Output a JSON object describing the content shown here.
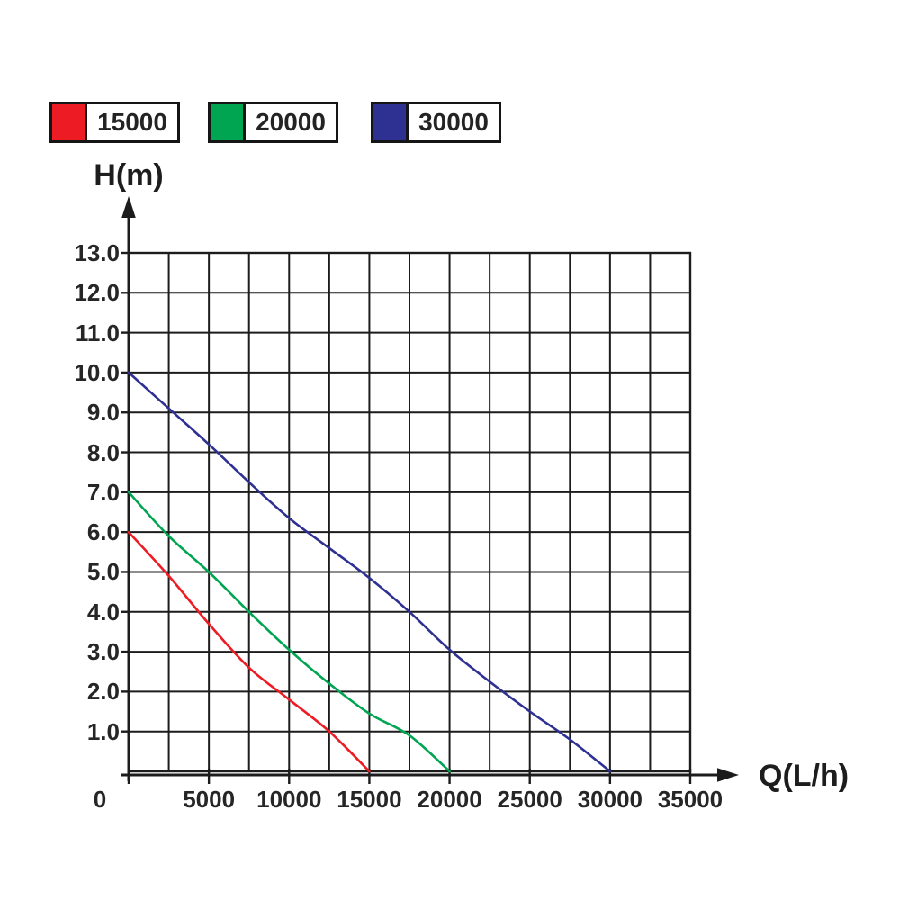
{
  "page": {
    "background": "#ffffff"
  },
  "legend": {
    "items": [
      {
        "label": "15000",
        "color": "#ED1C24"
      },
      {
        "label": "20000",
        "color": "#00A551"
      },
      {
        "label": "30000",
        "color": "#2E3192"
      }
    ]
  },
  "chart_data": {
    "type": "line",
    "title": "",
    "xlabel": "Q(L/h)",
    "ylabel": "H(m)",
    "xlim": [
      0,
      35000
    ],
    "ylim": [
      0,
      13
    ],
    "grid": {
      "on": true,
      "x_step": 2500,
      "y_step": 1.0
    },
    "x_tick_step": 5000,
    "y_tick_step": 1.0,
    "x_tick_labels": [
      "0",
      "5000",
      "10000",
      "15000",
      "20000",
      "25000",
      "30000",
      "35000"
    ],
    "y_tick_labels": [
      "1.0",
      "2.0",
      "3.0",
      "4.0",
      "5.0",
      "6.0",
      "7.0",
      "8.0",
      "9.0",
      "10.0",
      "11.0",
      "12.0",
      "13.0"
    ],
    "legend_position": "top-left",
    "axis_color": "#1c1c1c",
    "series": [
      {
        "name": "15000",
        "color": "#ED1C24",
        "x": [
          0,
          2500,
          5000,
          7500,
          10000,
          12500,
          15000
        ],
        "y": [
          6.0,
          4.9,
          3.7,
          2.6,
          1.8,
          1.0,
          0
        ]
      },
      {
        "name": "20000",
        "color": "#00A551",
        "x": [
          0,
          2500,
          5000,
          7500,
          10000,
          12500,
          15000,
          17500,
          20000
        ],
        "y": [
          7.0,
          5.9,
          5.0,
          4.0,
          3.05,
          2.2,
          1.45,
          0.9,
          0
        ]
      },
      {
        "name": "30000",
        "color": "#2E3192",
        "x": [
          0,
          2500,
          5000,
          7500,
          10000,
          12500,
          15000,
          17500,
          20000,
          22500,
          25000,
          27500,
          30000
        ],
        "y": [
          10.0,
          9.1,
          8.2,
          7.25,
          6.35,
          5.6,
          4.85,
          4.0,
          3.05,
          2.25,
          1.5,
          0.8,
          0
        ]
      }
    ]
  }
}
